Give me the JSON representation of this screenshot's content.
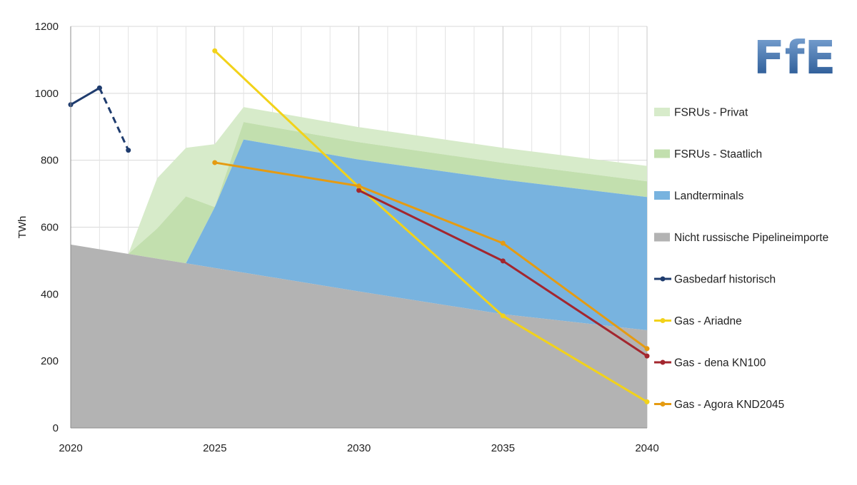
{
  "chart_data": {
    "type": "area",
    "ylabel": "TWh",
    "xlabel": "",
    "title": "",
    "xlim": [
      2020,
      2040
    ],
    "ylim": [
      0,
      1200
    ],
    "x_ticks": [
      2020,
      2025,
      2030,
      2035,
      2040
    ],
    "y_ticks": [
      0,
      200,
      400,
      600,
      800,
      1000,
      1200
    ],
    "grid": true,
    "legend_position": "right",
    "stacked_areas": [
      {
        "name": "Nicht russische Pipelineimporte",
        "color": "#b3b3b3",
        "x": [
          2020,
          2025,
          2030,
          2035,
          2040
        ],
        "values": [
          548,
          478,
          408,
          340,
          292
        ]
      },
      {
        "name": "Landterminals",
        "color": "#78b3df",
        "x": [
          2024,
          2025,
          2026,
          2030,
          2035,
          2040
        ],
        "values": [
          0,
          182,
          398,
          394,
          402,
          398
        ]
      },
      {
        "name": "FSRUs - Staatlich",
        "color": "#c2dfae",
        "x": [
          2022,
          2023,
          2024,
          2025,
          2026,
          2030,
          2035,
          2040
        ],
        "values": [
          0,
          90,
          200,
          0,
          0,
          0,
          0,
          0
        ],
        "extra_x": [
          2025,
          2026,
          2030,
          2035,
          2040
        ],
        "extra_values": [
          0,
          52,
          52,
          50,
          47
        ]
      },
      {
        "name": "FSRUs - Privat",
        "color": "#d7ebca",
        "x": [
          2022,
          2023,
          2024,
          2025,
          2026,
          2030,
          2035,
          2040
        ],
        "values": [
          0,
          150,
          145,
          188,
          45,
          45,
          45,
          46
        ]
      }
    ],
    "lines": [
      {
        "name": "Gasbedarf historisch",
        "color": "#1f3c6e",
        "x": [
          2020,
          2021
        ],
        "values": [
          966,
          1016
        ],
        "dashed_x": [
          2021,
          2022
        ],
        "dashed_values": [
          1016,
          830
        ]
      },
      {
        "name": "Gas - Ariadne",
        "color": "#f2d21a",
        "x": [
          2025,
          2030,
          2035,
          2040
        ],
        "values": [
          1127,
          720,
          335,
          78
        ]
      },
      {
        "name": "Gas - dena KN100",
        "color": "#a3262e",
        "x": [
          2030,
          2035,
          2040
        ],
        "values": [
          710,
          499,
          215
        ]
      },
      {
        "name": "Gas - Agora KND2045",
        "color": "#e59b12",
        "x": [
          2025,
          2030,
          2035,
          2040
        ],
        "values": [
          793,
          723,
          552,
          237
        ]
      }
    ],
    "legend": [
      {
        "name": "FSRUs - Privat",
        "kind": "area",
        "color": "#d7ebca"
      },
      {
        "name": "FSRUs - Staatlich",
        "kind": "area",
        "color": "#c2dfae"
      },
      {
        "name": "Landterminals",
        "kind": "area",
        "color": "#78b3df"
      },
      {
        "name": "Nicht russische Pipelineimporte",
        "kind": "area",
        "color": "#b3b3b3"
      },
      {
        "name": "Gasbedarf historisch",
        "kind": "line",
        "color": "#1f3c6e"
      },
      {
        "name": "Gas - Ariadne",
        "kind": "line",
        "color": "#f2d21a"
      },
      {
        "name": "Gas - dena KN100",
        "kind": "line",
        "color": "#a3262e"
      },
      {
        "name": "Gas - Agora KND2045",
        "kind": "line",
        "color": "#e59b12"
      }
    ]
  },
  "logo": {
    "text": "FfE",
    "color_top": "#7fa7d6",
    "color_bottom": "#1d4e8c"
  }
}
